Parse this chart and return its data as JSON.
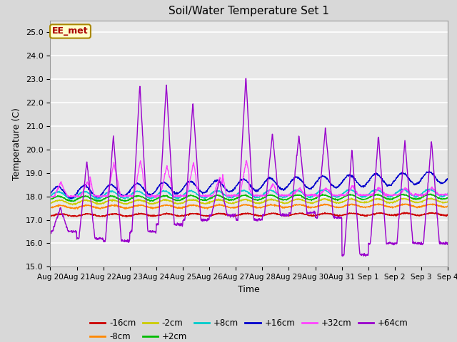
{
  "title": "Soil/Water Temperature Set 1",
  "xlabel": "Time",
  "ylabel": "Temperature (C)",
  "ylim": [
    15.0,
    25.5
  ],
  "yticks": [
    15.0,
    16.0,
    17.0,
    18.0,
    19.0,
    20.0,
    21.0,
    22.0,
    23.0,
    24.0,
    25.0
  ],
  "bg_color": "#d8d8d8",
  "plot_bg_color": "#e8e8e8",
  "annotation_text": "EE_met",
  "annotation_bg": "#ffffcc",
  "annotation_border": "#aa8800",
  "annotation_text_color": "#aa0000",
  "colors": {
    "-16cm": "#cc0000",
    "-8cm": "#ff8800",
    "-2cm": "#cccc00",
    "+2cm": "#00bb00",
    "+8cm": "#00cccc",
    "+16cm": "#0000cc",
    "+32cm": "#ff44ff",
    "+64cm": "#9900cc"
  },
  "tick_labels": [
    "Aug 20",
    "Aug 21",
    "Aug 22",
    "Aug 23",
    "Aug 24",
    "Aug 25",
    "Aug 26",
    "Aug 27",
    "Aug 28",
    "Aug 29",
    "Aug 30",
    "Aug 31",
    "Sep 1",
    "Sep 2",
    "Sep 3",
    "Sep 4"
  ],
  "n_days": 15,
  "n_points": 1500
}
